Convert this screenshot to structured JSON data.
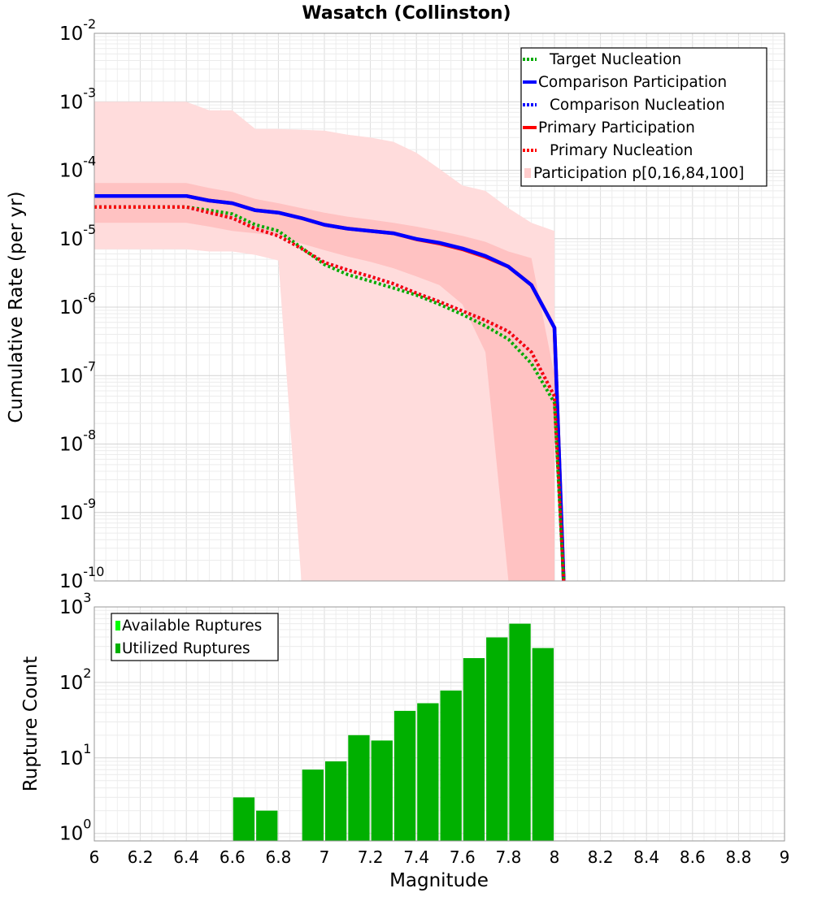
{
  "chart_data": [
    {
      "id": "rate-panel",
      "type": "line",
      "title": "Wasatch (Collinston)",
      "xlabel": "",
      "ylabel": "Cumulative Rate (per yr)",
      "xlim": [
        6,
        9
      ],
      "ylim_log10": [
        -10,
        -2
      ],
      "y_scale": "log",
      "y_ticks": [
        {
          "base": "10",
          "exp": "-2"
        },
        {
          "base": "10",
          "exp": "-3"
        },
        {
          "base": "10",
          "exp": "-4"
        },
        {
          "base": "10",
          "exp": "-5"
        },
        {
          "base": "10",
          "exp": "-6"
        },
        {
          "base": "10",
          "exp": "-7"
        },
        {
          "base": "10",
          "exp": "-8"
        },
        {
          "base": "10",
          "exp": "-9"
        },
        {
          "base": "10",
          "exp": "-10"
        }
      ],
      "grid": true,
      "legend_position": "top-right",
      "legend": [
        {
          "label": "Target Nucleation",
          "color": "#00aa00",
          "style": "dotted"
        },
        {
          "label": "Comparison Participation",
          "color": "#0000ff",
          "style": "solid"
        },
        {
          "label": "Comparison Nucleation",
          "color": "#0000ff",
          "style": "dotted"
        },
        {
          "label": "Primary Participation",
          "color": "#ff0000",
          "style": "solid"
        },
        {
          "label": "Primary Nucleation",
          "color": "#ff0000",
          "style": "dotted"
        },
        {
          "label": "Participation p[0,16,84,100]",
          "color": "#ffc8c8",
          "style": "fill"
        }
      ],
      "bands": {
        "outer_color": "#ffdcdc",
        "inner_color": "#ffc2c2",
        "outer": {
          "x": [
            6.0,
            6.4,
            6.5,
            6.6,
            6.7,
            6.8,
            6.9,
            7.0,
            7.1,
            7.2,
            7.3,
            7.4,
            7.5,
            7.6,
            7.7,
            7.8,
            7.9,
            8.0
          ],
          "upper": [
            0.001,
            0.001,
            0.00075,
            0.00075,
            0.0004,
            0.0004,
            0.00039,
            0.00038,
            0.00033,
            0.0003,
            0.00026,
            0.00018,
            0.000105,
            6e-05,
            5e-05,
            2.8e-05,
            1.7e-05,
            1.3e-05
          ],
          "lower": [
            7e-06,
            7e-06,
            6.5e-06,
            6.5e-06,
            5.8e-06,
            4.8e-06,
            1e-10,
            1e-10,
            1e-10,
            1e-10,
            1e-10,
            1e-10,
            1e-10,
            1e-10,
            1e-10,
            1e-10,
            1e-10,
            1e-10
          ]
        },
        "inner": {
          "x": [
            6.0,
            6.4,
            6.5,
            6.6,
            6.7,
            6.8,
            6.9,
            7.0,
            7.1,
            7.2,
            7.3,
            7.4,
            7.5,
            7.6,
            7.7,
            7.8,
            7.9,
            8.0
          ],
          "upper": [
            6.5e-05,
            6.5e-05,
            5.5e-05,
            4.8e-05,
            3.8e-05,
            3.3e-05,
            2.8e-05,
            2.4e-05,
            2.1e-05,
            1.9e-05,
            1.7e-05,
            1.5e-05,
            1.3e-05,
            1.1e-05,
            9e-06,
            6.5e-06,
            5.2e-06,
            1e-07
          ],
          "lower": [
            1.7e-05,
            1.7e-05,
            1.5e-05,
            1.3e-05,
            1.2e-05,
            1.1e-05,
            8.5e-06,
            6.8e-06,
            5.5e-06,
            4.6e-06,
            3.7e-06,
            2.8e-06,
            2.1e-06,
            1.1e-06,
            2.2e-07,
            1e-10,
            1e-10,
            1e-10
          ]
        }
      },
      "series": [
        {
          "name": "Primary Participation",
          "color": "#ff0000",
          "style": "solid",
          "x": [
            6.0,
            6.4,
            6.5,
            6.6,
            6.7,
            6.8,
            6.9,
            7.0,
            7.1,
            7.2,
            7.3,
            7.4,
            7.5,
            7.6,
            7.7,
            7.8,
            7.9,
            8.0,
            8.04
          ],
          "y": [
            4.2e-05,
            4.2e-05,
            3.6e-05,
            3.3e-05,
            2.6e-05,
            2.4e-05,
            2e-05,
            1.6e-05,
            1.4e-05,
            1.3e-05,
            1.2e-05,
            9.8e-06,
            8.5e-06,
            7e-06,
            5.4e-06,
            3.9e-06,
            2.1e-06,
            5e-07,
            1e-10
          ]
        },
        {
          "name": "Comparison Participation",
          "color": "#0000ff",
          "style": "solid",
          "x": [
            6.0,
            6.4,
            6.5,
            6.6,
            6.7,
            6.8,
            6.9,
            7.0,
            7.1,
            7.2,
            7.3,
            7.4,
            7.5,
            7.6,
            7.7,
            7.8,
            7.9,
            8.0,
            8.04
          ],
          "y": [
            4.2e-05,
            4.2e-05,
            3.6e-05,
            3.3e-05,
            2.6e-05,
            2.4e-05,
            2e-05,
            1.6e-05,
            1.4e-05,
            1.3e-05,
            1.2e-05,
            9.9e-06,
            8.7e-06,
            7.2e-06,
            5.6e-06,
            3.9e-06,
            2.1e-06,
            5e-07,
            1e-10
          ]
        },
        {
          "name": "Comparison Nucleation",
          "color": "#0000ff",
          "style": "dotted",
          "x": [
            6.0,
            6.4,
            6.5,
            6.6,
            6.7,
            6.8,
            6.9,
            7.0,
            7.1,
            7.2,
            7.3,
            7.4,
            7.5,
            7.6,
            7.7,
            7.8,
            7.9,
            8.0,
            8.04
          ],
          "y": [
            2.9e-05,
            2.9e-05,
            2.4e-05,
            2e-05,
            1.4e-05,
            1.1e-05,
            7.2e-06,
            4.5e-06,
            3.5e-06,
            2.8e-06,
            2.2e-06,
            1.6e-06,
            1.2e-06,
            8.8e-07,
            6.4e-07,
            4.4e-07,
            2.2e-07,
            5e-08,
            1e-10
          ]
        },
        {
          "name": "Target Nucleation",
          "color": "#00aa00",
          "style": "dotted",
          "x": [
            6.0,
            6.4,
            6.5,
            6.6,
            6.7,
            6.8,
            6.9,
            7.0,
            7.1,
            7.2,
            7.3,
            7.4,
            7.5,
            7.6,
            7.7,
            7.8,
            7.9,
            8.0,
            8.04
          ],
          "y": [
            2.9e-05,
            2.9e-05,
            2.6e-05,
            2.3e-05,
            1.6e-05,
            1.3e-05,
            7.4e-06,
            4.2e-06,
            3e-06,
            2.4e-06,
            1.9e-06,
            1.5e-06,
            1.1e-06,
            7.8e-07,
            5.3e-07,
            3.4e-07,
            1.5e-07,
            4e-08,
            1e-10
          ]
        },
        {
          "name": "Primary Nucleation",
          "color": "#ff0000",
          "style": "dotted",
          "x": [
            6.0,
            6.4,
            6.5,
            6.6,
            6.7,
            6.8,
            6.9,
            7.0,
            7.1,
            7.2,
            7.3,
            7.4,
            7.5,
            7.6,
            7.7,
            7.8,
            7.9,
            8.0,
            8.04
          ],
          "y": [
            2.9e-05,
            2.9e-05,
            2.4e-05,
            2e-05,
            1.4e-05,
            1.1e-05,
            7.2e-06,
            4.5e-06,
            3.5e-06,
            2.8e-06,
            2.2e-06,
            1.6e-06,
            1.2e-06,
            8.8e-07,
            6.4e-07,
            4.4e-07,
            2.2e-07,
            5e-08,
            1e-10
          ]
        }
      ]
    },
    {
      "id": "count-panel",
      "type": "bar",
      "title": "",
      "xlabel": "Magnitude",
      "ylabel": "Rupture Count",
      "xlim": [
        6,
        9
      ],
      "ylim_log10": [
        -0.1,
        3
      ],
      "y_scale": "log",
      "x_ticks": [
        "6",
        "6.2",
        "6.4",
        "6.6",
        "6.8",
        "7",
        "7.2",
        "7.4",
        "7.6",
        "7.8",
        "8",
        "8.2",
        "8.4",
        "8.6",
        "8.8",
        "9"
      ],
      "y_ticks": [
        {
          "base": "10",
          "exp": "3"
        },
        {
          "base": "10",
          "exp": "2"
        },
        {
          "base": "10",
          "exp": "1"
        },
        {
          "base": "10",
          "exp": "0"
        }
      ],
      "grid": true,
      "legend_position": "top-left",
      "legend": [
        {
          "label": "Available Ruptures",
          "color": "#00ff00"
        },
        {
          "label": "Utilized Ruptures",
          "color": "#00b000"
        }
      ],
      "bar_width": 0.1,
      "bar_color": "#00b000",
      "bars": [
        {
          "x": 6.65,
          "value": 3
        },
        {
          "x": 6.75,
          "value": 2
        },
        {
          "x": 6.95,
          "value": 7
        },
        {
          "x": 7.05,
          "value": 9
        },
        {
          "x": 7.15,
          "value": 20
        },
        {
          "x": 7.25,
          "value": 17
        },
        {
          "x": 7.35,
          "value": 42
        },
        {
          "x": 7.45,
          "value": 53
        },
        {
          "x": 7.55,
          "value": 78
        },
        {
          "x": 7.65,
          "value": 210
        },
        {
          "x": 7.75,
          "value": 395
        },
        {
          "x": 7.85,
          "value": 600
        },
        {
          "x": 7.95,
          "value": 285
        }
      ]
    }
  ]
}
